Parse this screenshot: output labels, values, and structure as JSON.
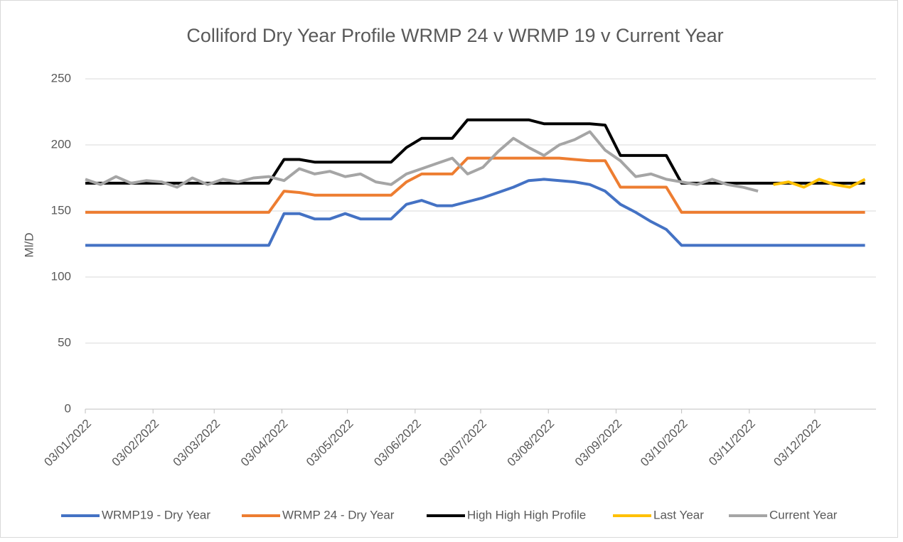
{
  "chart_data": {
    "type": "line",
    "title": "Colliford Dry Year Profile WRMP 24 v WRMP 19 v Current Year",
    "y_label": "Ml/D",
    "x": [
      "03/01/2022",
      "10/01/2022",
      "17/01/2022",
      "24/01/2022",
      "31/01/2022",
      "07/02/2022",
      "14/02/2022",
      "21/02/2022",
      "28/02/2022",
      "07/03/2022",
      "14/03/2022",
      "21/03/2022",
      "28/03/2022",
      "04/04/2022",
      "11/04/2022",
      "18/04/2022",
      "25/04/2022",
      "02/05/2022",
      "09/05/2022",
      "16/05/2022",
      "23/05/2022",
      "30/05/2022",
      "06/06/2022",
      "13/06/2022",
      "20/06/2022",
      "27/06/2022",
      "04/07/2022",
      "11/07/2022",
      "18/07/2022",
      "25/07/2022",
      "01/08/2022",
      "08/08/2022",
      "15/08/2022",
      "22/08/2022",
      "29/08/2022",
      "05/09/2022",
      "12/09/2022",
      "19/09/2022",
      "26/09/2022",
      "03/10/2022",
      "10/10/2022",
      "17/10/2022",
      "24/10/2022",
      "31/10/2022",
      "07/11/2022",
      "14/11/2022",
      "21/11/2022",
      "28/11/2022",
      "05/12/2022",
      "12/12/2022",
      "19/12/2022",
      "26/12/2022"
    ],
    "series": [
      {
        "name": "WRMP19 - Dry Year",
        "color": "#4472c4",
        "values": [
          124,
          124,
          124,
          124,
          124,
          124,
          124,
          124,
          124,
          124,
          124,
          124,
          124,
          148,
          148,
          144,
          144,
          148,
          144,
          144,
          144,
          155,
          158,
          154,
          154,
          157,
          160,
          164,
          168,
          173,
          174,
          173,
          172,
          170,
          165,
          155,
          149,
          142,
          136,
          124,
          124,
          124,
          124,
          124,
          124,
          124,
          124,
          124,
          124,
          124,
          124,
          124
        ]
      },
      {
        "name": "WRMP 24 - Dry Year",
        "color": "#ed7d31",
        "values": [
          149,
          149,
          149,
          149,
          149,
          149,
          149,
          149,
          149,
          149,
          149,
          149,
          149,
          165,
          164,
          162,
          162,
          162,
          162,
          162,
          162,
          172,
          178,
          178,
          178,
          190,
          190,
          190,
          190,
          190,
          190,
          190,
          189,
          188,
          188,
          168,
          168,
          168,
          168,
          149,
          149,
          149,
          149,
          149,
          149,
          149,
          149,
          149,
          149,
          149,
          149,
          149
        ]
      },
      {
        "name": "High High High Profile",
        "color": "#000000",
        "values": [
          171,
          171,
          171,
          171,
          171,
          171,
          171,
          171,
          171,
          171,
          171,
          171,
          171,
          189,
          189,
          187,
          187,
          187,
          187,
          187,
          187,
          198,
          205,
          205,
          205,
          219,
          219,
          219,
          219,
          219,
          216,
          216,
          216,
          216,
          215,
          192,
          192,
          192,
          192,
          171,
          171,
          171,
          171,
          171,
          171,
          171,
          171,
          171,
          171,
          171,
          171,
          171
        ]
      },
      {
        "name": "Last Year",
        "color": "#ffc000",
        "values": [
          null,
          null,
          null,
          null,
          null,
          null,
          null,
          null,
          null,
          null,
          null,
          null,
          null,
          null,
          null,
          null,
          null,
          null,
          null,
          null,
          null,
          null,
          null,
          null,
          null,
          null,
          null,
          null,
          null,
          null,
          null,
          null,
          null,
          null,
          null,
          null,
          null,
          null,
          null,
          null,
          null,
          null,
          null,
          null,
          null,
          170,
          172,
          168,
          174,
          170,
          168,
          174
        ]
      },
      {
        "name": "Current Year",
        "color": "#a5a5a5",
        "values": [
          174,
          170,
          176,
          171,
          173,
          172,
          168,
          175,
          170,
          174,
          172,
          175,
          176,
          173,
          182,
          178,
          180,
          176,
          178,
          172,
          170,
          178,
          182,
          186,
          190,
          178,
          183,
          195,
          205,
          198,
          192,
          200,
          204,
          210,
          196,
          188,
          176,
          178,
          174,
          172,
          170,
          174,
          170,
          168,
          165,
          null,
          null,
          null,
          null,
          null,
          null,
          null
        ]
      }
    ],
    "xlim": [
      "03/01/2022",
      "31/12/2022"
    ],
    "xticks": [
      "03/01/2022",
      "03/02/2022",
      "03/03/2022",
      "03/04/2022",
      "03/05/2022",
      "03/06/2022",
      "03/07/2022",
      "03/08/2022",
      "03/09/2022",
      "03/10/2022",
      "03/11/2022",
      "03/12/2022"
    ],
    "ylim": [
      0,
      250
    ],
    "yticks": [
      0,
      50,
      100,
      150,
      200,
      250
    ],
    "grid": true,
    "legend": "bottom"
  }
}
